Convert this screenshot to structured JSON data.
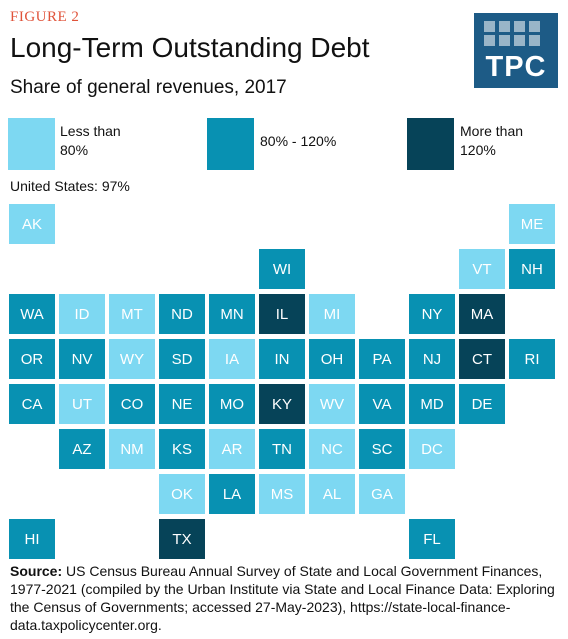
{
  "figure_label": "FIGURE 2",
  "title": "Long-Term Outstanding Debt",
  "subtitle": "Share of general revenues, 2017",
  "logo_text": "TPC",
  "colors": {
    "low": "#7dd8f2",
    "mid": "#0891b2",
    "high": "#064358",
    "logo": "#1d5b86",
    "figure_label": "#e0533a"
  },
  "legend": {
    "low": {
      "line1": "Less than",
      "line2": "80%"
    },
    "mid": {
      "line1": "80% - 120%"
    },
    "high": {
      "line1": "More than",
      "line2": "120%"
    }
  },
  "us_total": "United States: 97%",
  "chart_data": {
    "type": "tile-grid-map",
    "title": "Long-Term Outstanding Debt",
    "subtitle": "Share of general revenues, 2017",
    "legend": [
      "Less than 80%",
      "80% - 120%",
      "More than 120%"
    ],
    "states": [
      {
        "abbr": "AK",
        "category": "low",
        "row": 0,
        "col": 0
      },
      {
        "abbr": "ME",
        "category": "low",
        "row": 0,
        "col": 10
      },
      {
        "abbr": "WI",
        "category": "mid",
        "row": 1,
        "col": 5
      },
      {
        "abbr": "VT",
        "category": "low",
        "row": 1,
        "col": 9
      },
      {
        "abbr": "NH",
        "category": "mid",
        "row": 1,
        "col": 10
      },
      {
        "abbr": "WA",
        "category": "mid",
        "row": 2,
        "col": 0
      },
      {
        "abbr": "ID",
        "category": "low",
        "row": 2,
        "col": 1
      },
      {
        "abbr": "MT",
        "category": "low",
        "row": 2,
        "col": 2
      },
      {
        "abbr": "ND",
        "category": "mid",
        "row": 2,
        "col": 3
      },
      {
        "abbr": "MN",
        "category": "mid",
        "row": 2,
        "col": 4
      },
      {
        "abbr": "IL",
        "category": "high",
        "row": 2,
        "col": 5
      },
      {
        "abbr": "MI",
        "category": "low",
        "row": 2,
        "col": 6
      },
      {
        "abbr": "NY",
        "category": "mid",
        "row": 2,
        "col": 8
      },
      {
        "abbr": "MA",
        "category": "high",
        "row": 2,
        "col": 9
      },
      {
        "abbr": "OR",
        "category": "mid",
        "row": 3,
        "col": 0
      },
      {
        "abbr": "NV",
        "category": "mid",
        "row": 3,
        "col": 1
      },
      {
        "abbr": "WY",
        "category": "low",
        "row": 3,
        "col": 2
      },
      {
        "abbr": "SD",
        "category": "mid",
        "row": 3,
        "col": 3
      },
      {
        "abbr": "IA",
        "category": "low",
        "row": 3,
        "col": 4
      },
      {
        "abbr": "IN",
        "category": "mid",
        "row": 3,
        "col": 5
      },
      {
        "abbr": "OH",
        "category": "mid",
        "row": 3,
        "col": 6
      },
      {
        "abbr": "PA",
        "category": "mid",
        "row": 3,
        "col": 7
      },
      {
        "abbr": "NJ",
        "category": "mid",
        "row": 3,
        "col": 8
      },
      {
        "abbr": "CT",
        "category": "high",
        "row": 3,
        "col": 9
      },
      {
        "abbr": "RI",
        "category": "mid",
        "row": 3,
        "col": 10
      },
      {
        "abbr": "CA",
        "category": "mid",
        "row": 4,
        "col": 0
      },
      {
        "abbr": "UT",
        "category": "low",
        "row": 4,
        "col": 1
      },
      {
        "abbr": "CO",
        "category": "mid",
        "row": 4,
        "col": 2
      },
      {
        "abbr": "NE",
        "category": "mid",
        "row": 4,
        "col": 3
      },
      {
        "abbr": "MO",
        "category": "mid",
        "row": 4,
        "col": 4
      },
      {
        "abbr": "KY",
        "category": "high",
        "row": 4,
        "col": 5
      },
      {
        "abbr": "WV",
        "category": "low",
        "row": 4,
        "col": 6
      },
      {
        "abbr": "VA",
        "category": "mid",
        "row": 4,
        "col": 7
      },
      {
        "abbr": "MD",
        "category": "mid",
        "row": 4,
        "col": 8
      },
      {
        "abbr": "DE",
        "category": "mid",
        "row": 4,
        "col": 9
      },
      {
        "abbr": "AZ",
        "category": "mid",
        "row": 5,
        "col": 1
      },
      {
        "abbr": "NM",
        "category": "low",
        "row": 5,
        "col": 2
      },
      {
        "abbr": "KS",
        "category": "mid",
        "row": 5,
        "col": 3
      },
      {
        "abbr": "AR",
        "category": "low",
        "row": 5,
        "col": 4
      },
      {
        "abbr": "TN",
        "category": "mid",
        "row": 5,
        "col": 5
      },
      {
        "abbr": "NC",
        "category": "low",
        "row": 5,
        "col": 6
      },
      {
        "abbr": "SC",
        "category": "mid",
        "row": 5,
        "col": 7
      },
      {
        "abbr": "DC",
        "category": "low",
        "row": 5,
        "col": 8
      },
      {
        "abbr": "OK",
        "category": "low",
        "row": 6,
        "col": 3
      },
      {
        "abbr": "LA",
        "category": "mid",
        "row": 6,
        "col": 4
      },
      {
        "abbr": "MS",
        "category": "low",
        "row": 6,
        "col": 5
      },
      {
        "abbr": "AL",
        "category": "low",
        "row": 6,
        "col": 6
      },
      {
        "abbr": "GA",
        "category": "low",
        "row": 6,
        "col": 7
      },
      {
        "abbr": "HI",
        "category": "mid",
        "row": 7,
        "col": 0
      },
      {
        "abbr": "TX",
        "category": "high",
        "row": 7,
        "col": 3
      },
      {
        "abbr": "FL",
        "category": "mid",
        "row": 7,
        "col": 8
      }
    ]
  },
  "source": {
    "label": "Source:",
    "text": "US Census Bureau Annual Survey of State and Local Government Finances, 1977-2021 (compiled by the Urban Institute via State and Local Finance Data: Exploring the Census of Governments; accessed 27-May-2023), https://state-local-finance-data.taxpolicycenter.org."
  }
}
